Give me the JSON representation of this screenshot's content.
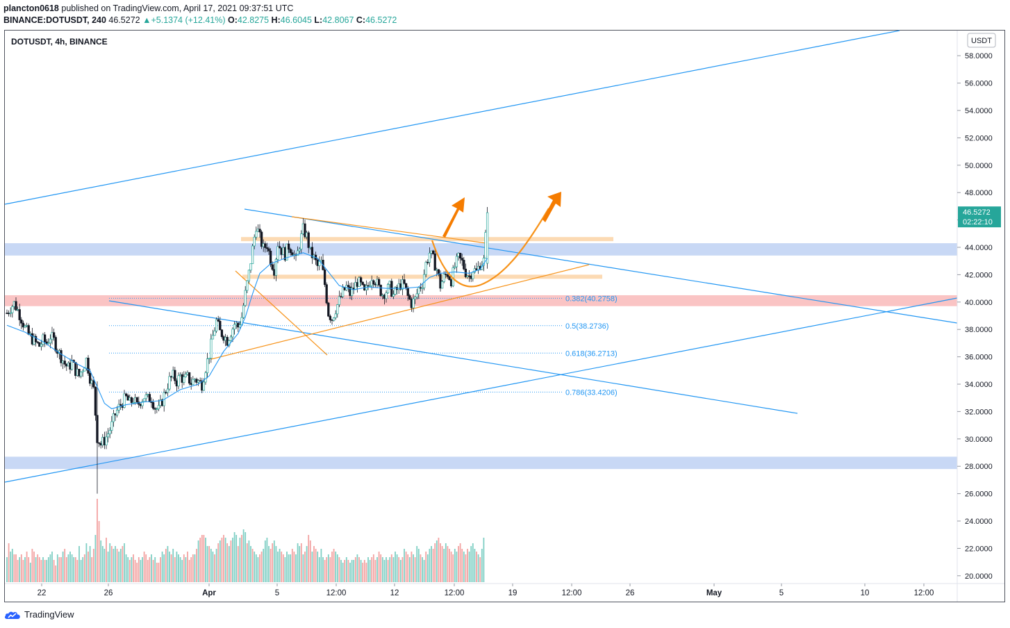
{
  "header": {
    "author": "plancton0618",
    "published_text": "published on TradingView.com, April 17, 2021 09:37:51 UTC",
    "symbol": "BINANCE:DOTUSDT, 240",
    "last": "46.5272",
    "change": "+5.1374 (+12.41%)",
    "open_label": "O:",
    "open": "42.8275",
    "high_label": "H:",
    "high": "46.6045",
    "low_label": "L:",
    "low": "42.8067",
    "close_label": "C:",
    "close": "46.5272"
  },
  "legend_text": "DOTUSDT, 4h, BINANCE",
  "footer": {
    "brand": "TradingView"
  },
  "chart_data": {
    "type": "candlestick",
    "symbol": "DOTUSDT",
    "interval": "4h",
    "exchange": "BINANCE",
    "currency_label": "USDT",
    "y_ticks": [
      "58.0000",
      "56.0000",
      "54.0000",
      "52.0000",
      "50.0000",
      "48.0000",
      "46.0000",
      "44.0000",
      "42.0000",
      "40.0000",
      "38.0000",
      "36.0000",
      "34.0000",
      "32.0000",
      "30.0000",
      "28.0000",
      "26.0000",
      "24.0000",
      "22.0000",
      "20.0000"
    ],
    "ylim": [
      19.6,
      59.2
    ],
    "x_ticks": [
      "22",
      "26",
      "Apr",
      "5",
      "12:00",
      "12",
      "12:00",
      "19",
      "12:00",
      "26",
      "May",
      "5",
      "10",
      "12:00"
    ],
    "last_price": {
      "value": 46.5272,
      "label": "46.5272",
      "countdown": "02:22:10"
    },
    "fib_levels": [
      {
        "ratio": "0.382",
        "value": 40.2758,
        "label": "0.382(40.2758)"
      },
      {
        "ratio": "0.5",
        "value": 38.2736,
        "label": "0.5(38.2736)"
      },
      {
        "ratio": "0.618",
        "value": 36.2713,
        "label": "0.618(36.2713)"
      },
      {
        "ratio": "0.786",
        "value": 33.4206,
        "label": "0.786(33.4206)"
      }
    ],
    "zones": [
      {
        "kind": "support",
        "color": "#b9cdf2",
        "from": 43.4,
        "to": 44.3
      },
      {
        "kind": "support",
        "color": "#f8b4b4",
        "from": 39.7,
        "to": 40.5
      },
      {
        "kind": "support",
        "color": "#b9cdf2",
        "from": 27.8,
        "to": 28.7
      },
      {
        "kind": "range",
        "color": "#fbd3a6",
        "from": 44.45,
        "to": 44.75
      },
      {
        "kind": "range",
        "color": "#fbd3a6",
        "from": 41.7,
        "to": 42.0
      }
    ],
    "close_path": [
      [
        0,
        39.2
      ],
      [
        2,
        39.6
      ],
      [
        4,
        39.9
      ],
      [
        6,
        39.4
      ],
      [
        8,
        38.8
      ],
      [
        10,
        38.1
      ],
      [
        12,
        37.6
      ],
      [
        14,
        37.3
      ],
      [
        16,
        37.0
      ],
      [
        18,
        36.8
      ],
      [
        20,
        37.2
      ],
      [
        22,
        37.0
      ],
      [
        24,
        37.5
      ],
      [
        26,
        37.2
      ],
      [
        28,
        36.5
      ],
      [
        30,
        36.0
      ],
      [
        32,
        35.5
      ],
      [
        34,
        35.2
      ],
      [
        36,
        35.6
      ],
      [
        38,
        35.0
      ],
      [
        40,
        34.6
      ],
      [
        42,
        35.2
      ],
      [
        44,
        35.8
      ],
      [
        46,
        34.5
      ],
      [
        48,
        33.6
      ],
      [
        50,
        30.1
      ],
      [
        52,
        29.6
      ],
      [
        54,
        29.9
      ],
      [
        56,
        30.4
      ],
      [
        58,
        31.0
      ],
      [
        60,
        31.8
      ],
      [
        62,
        32.3
      ],
      [
        64,
        32.7
      ],
      [
        66,
        33.0
      ],
      [
        68,
        32.6
      ],
      [
        70,
        32.9
      ],
      [
        72,
        32.4
      ],
      [
        74,
        32.8
      ],
      [
        76,
        33.1
      ],
      [
        78,
        32.9
      ],
      [
        80,
        33.0
      ],
      [
        82,
        32.3
      ],
      [
        84,
        32.1
      ],
      [
        86,
        32.8
      ],
      [
        88,
        33.6
      ],
      [
        90,
        34.3
      ],
      [
        92,
        34.6
      ],
      [
        94,
        34.2
      ],
      [
        96,
        34.6
      ],
      [
        98,
        34.3
      ],
      [
        100,
        34.5
      ],
      [
        102,
        34.1
      ],
      [
        104,
        34.4
      ],
      [
        106,
        34.2
      ],
      [
        108,
        34.0
      ],
      [
        110,
        35.2
      ],
      [
        112,
        36.2
      ],
      [
        114,
        37.5
      ],
      [
        116,
        38.6
      ],
      [
        118,
        37.8
      ],
      [
        120,
        37.6
      ],
      [
        122,
        37.2
      ],
      [
        124,
        37.8
      ],
      [
        126,
        38.4
      ],
      [
        128,
        38.2
      ],
      [
        130,
        38.9
      ],
      [
        132,
        40.6
      ],
      [
        134,
        42.1
      ],
      [
        136,
        43.9
      ],
      [
        138,
        45.6
      ],
      [
        140,
        44.7
      ],
      [
        142,
        43.9
      ],
      [
        144,
        44.2
      ],
      [
        146,
        43.1
      ],
      [
        148,
        42.4
      ],
      [
        150,
        44.3
      ],
      [
        152,
        43.8
      ],
      [
        154,
        43.5
      ],
      [
        156,
        44.1
      ],
      [
        158,
        43.8
      ],
      [
        160,
        43.0
      ],
      [
        162,
        44.2
      ],
      [
        164,
        45.3
      ],
      [
        166,
        44.8
      ],
      [
        168,
        43.6
      ],
      [
        170,
        43.2
      ],
      [
        172,
        42.6
      ],
      [
        174,
        42.9
      ],
      [
        176,
        41.3
      ],
      [
        178,
        39.2
      ],
      [
        180,
        38.8
      ],
      [
        182,
        39.5
      ],
      [
        184,
        40.1
      ],
      [
        186,
        40.7
      ],
      [
        188,
        41.1
      ],
      [
        190,
        40.6
      ],
      [
        192,
        41.0
      ],
      [
        194,
        41.5
      ],
      [
        196,
        41.2
      ],
      [
        198,
        40.6
      ],
      [
        200,
        41.2
      ],
      [
        202,
        41.9
      ],
      [
        204,
        41.6
      ],
      [
        206,
        41.0
      ],
      [
        208,
        40.6
      ],
      [
        210,
        40.8
      ],
      [
        212,
        41.1
      ],
      [
        214,
        40.5
      ],
      [
        216,
        40.9
      ],
      [
        218,
        41.3
      ],
      [
        220,
        41.2
      ],
      [
        222,
        40.4
      ],
      [
        224,
        39.9
      ],
      [
        226,
        40.2
      ],
      [
        228,
        41.0
      ],
      [
        230,
        41.4
      ],
      [
        232,
        42.8
      ],
      [
        234,
        43.6
      ],
      [
        236,
        43.1
      ],
      [
        238,
        42.4
      ],
      [
        240,
        41.2
      ],
      [
        242,
        41.8
      ],
      [
        244,
        42.1
      ],
      [
        246,
        41.6
      ],
      [
        248,
        42.6
      ],
      [
        250,
        43.2
      ],
      [
        252,
        42.9
      ],
      [
        254,
        42.2
      ],
      [
        256,
        41.9
      ],
      [
        258,
        42.4
      ],
      [
        260,
        42.2
      ],
      [
        262,
        42.8
      ],
      [
        264,
        43.0
      ],
      [
        266,
        46.5
      ]
    ],
    "ema": [
      [
        0,
        38.3
      ],
      [
        10,
        37.8
      ],
      [
        20,
        37.1
      ],
      [
        30,
        36.2
      ],
      [
        40,
        35.4
      ],
      [
        46,
        35.0
      ],
      [
        50,
        33.8
      ],
      [
        54,
        32.6
      ],
      [
        58,
        32.2
      ],
      [
        66,
        32.5
      ],
      [
        76,
        32.7
      ],
      [
        86,
        32.8
      ],
      [
        96,
        33.6
      ],
      [
        106,
        34.0
      ],
      [
        112,
        34.6
      ],
      [
        120,
        36.4
      ],
      [
        128,
        37.7
      ],
      [
        132,
        38.9
      ],
      [
        136,
        40.6
      ],
      [
        140,
        42.1
      ],
      [
        146,
        42.8
      ],
      [
        154,
        43.2
      ],
      [
        164,
        43.6
      ],
      [
        172,
        43.2
      ],
      [
        178,
        42.2
      ],
      [
        184,
        41.2
      ],
      [
        192,
        40.9
      ],
      [
        200,
        41.1
      ],
      [
        210,
        41.0
      ],
      [
        220,
        41.0
      ],
      [
        228,
        41.1
      ],
      [
        234,
        41.8
      ],
      [
        240,
        42.1
      ],
      [
        248,
        42.2
      ],
      [
        256,
        42.1
      ],
      [
        262,
        42.4
      ],
      [
        266,
        43.2
      ]
    ],
    "volume": [
      9,
      14,
      11,
      12,
      10,
      10,
      8,
      9,
      10,
      8,
      9,
      11,
      9,
      7,
      12,
      11,
      9,
      10,
      9,
      8,
      9,
      8,
      8,
      9,
      10,
      11,
      8,
      6,
      10,
      9,
      9,
      11,
      12,
      9,
      10,
      11,
      10,
      9,
      9,
      8,
      13,
      8,
      9,
      10,
      14,
      11,
      13,
      9,
      12,
      17,
      30,
      22,
      15,
      13,
      12,
      16,
      11,
      14,
      13,
      12,
      13,
      12,
      11,
      12,
      13,
      14,
      10,
      9,
      8,
      9,
      10,
      8,
      7,
      9,
      8,
      9,
      11,
      10,
      8,
      9,
      10,
      8,
      9,
      7,
      7,
      9,
      11,
      10,
      12,
      13,
      11,
      10,
      12,
      9,
      11,
      10,
      9,
      8,
      10,
      9,
      11,
      8,
      9,
      10,
      10,
      12,
      15,
      16,
      17,
      17,
      16,
      13,
      13,
      12,
      11,
      10,
      12,
      14,
      15,
      16,
      17,
      16,
      14,
      13,
      15,
      16,
      18,
      17,
      13,
      16,
      17,
      19,
      18,
      14,
      15,
      13,
      12,
      11,
      10,
      9,
      10,
      11,
      12,
      15,
      16,
      13,
      12,
      14,
      15,
      13,
      11,
      12,
      11,
      10,
      9,
      11,
      10,
      10,
      12,
      11,
      10,
      14,
      13,
      14,
      10,
      11,
      13,
      17,
      15,
      11,
      13,
      12,
      11,
      9,
      12,
      9,
      8,
      9,
      10,
      9,
      11,
      12,
      11,
      10,
      9,
      8,
      7,
      8,
      9,
      8,
      7,
      8,
      8,
      9,
      10,
      9,
      8,
      7,
      8,
      7,
      9,
      8,
      9,
      10,
      8,
      9,
      11,
      10,
      9,
      8,
      9,
      8,
      9,
      10,
      9,
      11,
      10,
      9,
      8,
      9,
      12,
      11,
      10,
      9,
      11,
      10,
      9,
      13,
      12,
      10,
      9,
      8,
      11,
      10,
      12,
      13,
      12,
      14,
      15,
      16,
      14,
      13,
      12,
      14,
      13,
      12,
      11,
      10,
      12,
      11,
      13,
      14,
      12,
      11,
      10,
      12,
      11,
      13,
      14,
      12,
      11,
      10,
      9,
      12,
      16
    ]
  }
}
